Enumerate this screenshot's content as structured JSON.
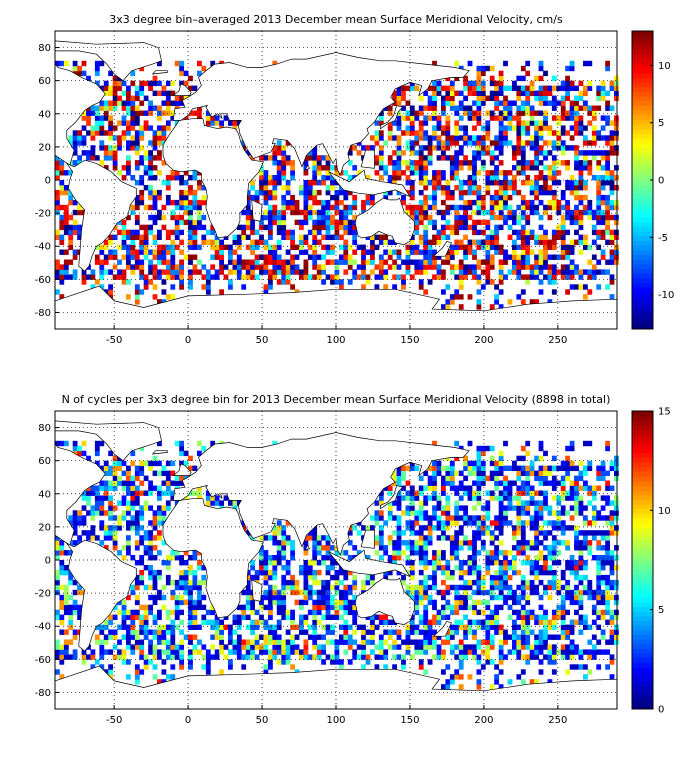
{
  "chart_data": [
    {
      "type": "heatmap",
      "title": "3x3 degree bin–averaged 2013 December mean Surface Meridional Velocity, cm/s",
      "xlabel": "",
      "ylabel": "",
      "xlim": [
        -90,
        290
      ],
      "ylim": [
        -90,
        90
      ],
      "x_ticks": [
        -50,
        0,
        50,
        100,
        150,
        200,
        250
      ],
      "y_ticks": [
        80,
        60,
        40,
        20,
        0,
        -20,
        -40,
        -60,
        -80
      ],
      "grid": true,
      "colormap": "jet",
      "colorbar": {
        "range": [
          -13,
          13
        ],
        "ticks": [
          10,
          5,
          0,
          -5,
          -10
        ]
      },
      "bin_size_deg": 3,
      "field": "velocity_cm_s"
    },
    {
      "type": "heatmap",
      "title": "N of cycles per 3x3 degree bin for 2013 December mean Surface Meridional Velocity (8898 in total)",
      "xlabel": "",
      "ylabel": "",
      "xlim": [
        -90,
        290
      ],
      "ylim": [
        -90,
        90
      ],
      "x_ticks": [
        -50,
        0,
        50,
        100,
        150,
        200,
        250
      ],
      "y_ticks": [
        80,
        60,
        40,
        20,
        0,
        -20,
        -40,
        -60,
        -80
      ],
      "grid": true,
      "colormap": "jet",
      "colorbar": {
        "range": [
          0,
          15
        ],
        "ticks": [
          15,
          10,
          5,
          0
        ]
      },
      "bin_size_deg": 3,
      "field": "cycle_count"
    }
  ]
}
